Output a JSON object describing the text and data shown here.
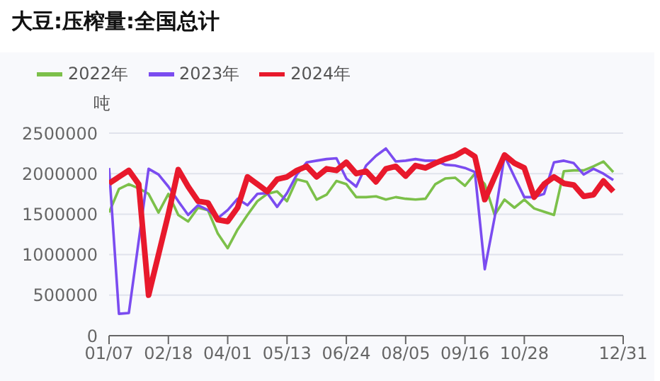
{
  "chart_data": {
    "type": "line",
    "title": "大豆:压榨量:全国总计",
    "ylabel": "吨",
    "categories": [
      "01/07",
      null,
      null,
      null,
      null,
      null,
      "02/18",
      null,
      null,
      null,
      null,
      null,
      "04/01",
      null,
      null,
      null,
      null,
      null,
      "05/13",
      null,
      null,
      null,
      null,
      null,
      "06/24",
      null,
      null,
      null,
      null,
      null,
      "08/05",
      null,
      null,
      null,
      null,
      null,
      "09/16",
      null,
      null,
      null,
      null,
      null,
      "10/28",
      null,
      null,
      null,
      null,
      null,
      null,
      null,
      null,
      null,
      "12/31"
    ],
    "series": [
      {
        "name": "2022年",
        "color": "#7cc04a",
        "values": [
          1520000,
          1810000,
          1870000,
          1820000,
          1750000,
          1520000,
          1750000,
          1490000,
          1410000,
          1580000,
          1550000,
          1260000,
          1080000,
          1310000,
          1490000,
          1660000,
          1750000,
          1780000,
          1660000,
          1930000,
          1900000,
          1680000,
          1740000,
          1910000,
          1870000,
          1710000,
          1710000,
          1720000,
          1680000,
          1710000,
          1690000,
          1680000,
          1690000,
          1870000,
          1940000,
          1950000,
          1850000,
          2000000,
          1870000,
          1490000,
          1680000,
          1580000,
          1680000,
          1570000,
          1530000,
          1490000,
          2030000,
          2040000,
          2040000,
          2090000,
          2150000,
          2020000,
          null
        ]
      },
      {
        "name": "2023年",
        "color": "#7b4cf0",
        "values": [
          2070000,
          270000,
          280000,
          1170000,
          2060000,
          1990000,
          1840000,
          1660000,
          1490000,
          1610000,
          1550000,
          1450000,
          1550000,
          1690000,
          1610000,
          1750000,
          1760000,
          1590000,
          1760000,
          1990000,
          2140000,
          2160000,
          2180000,
          2190000,
          1940000,
          1840000,
          2100000,
          2220000,
          2310000,
          2150000,
          2160000,
          2180000,
          2160000,
          2160000,
          2110000,
          2100000,
          2070000,
          2020000,
          820000,
          1460000,
          2220000,
          1960000,
          1710000,
          1710000,
          1750000,
          2140000,
          2160000,
          2130000,
          1990000,
          2060000,
          2000000,
          1920000,
          null
        ]
      },
      {
        "name": "2024年",
        "color": "#e8192c",
        "values": [
          1880000,
          1960000,
          2040000,
          1870000,
          500000,
          1000000,
          1500000,
          2050000,
          1840000,
          1660000,
          1640000,
          1430000,
          1410000,
          1580000,
          1960000,
          1870000,
          1780000,
          1930000,
          1960000,
          2040000,
          2090000,
          1960000,
          2060000,
          2040000,
          2140000,
          2000000,
          2030000,
          1900000,
          2060000,
          2090000,
          1970000,
          2100000,
          2070000,
          2130000,
          2180000,
          2220000,
          2290000,
          2210000,
          1680000,
          1960000,
          2230000,
          2130000,
          2070000,
          1710000,
          1870000,
          1960000,
          1880000,
          1860000,
          1720000,
          1740000,
          1910000,
          1780000,
          null
        ]
      }
    ],
    "ylim": [
      0,
      2500000
    ],
    "yticks": [
      0,
      500000,
      1000000,
      1500000,
      2000000,
      2500000
    ],
    "grid": "y",
    "legend": "top left",
    "marker": "none",
    "line_style": "solid"
  }
}
